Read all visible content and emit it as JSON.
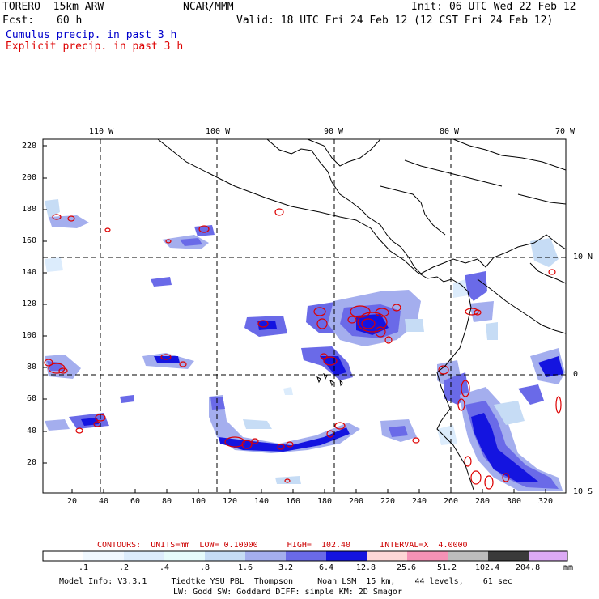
{
  "header": {
    "model": "TORERO  15km ARW",
    "center": "NCAR/MMM",
    "init": "Init: 06 UTC Wed 22 Feb 12",
    "fcst_label": "Fcst:",
    "fcst_value": "60 h",
    "valid": "Valid: 18 UTC Fri 24 Feb 12 (12 CST Fri 24 Feb 12)",
    "legend1": "Cumulus precip. in past 3 h",
    "legend2": "Explicit precip. in past 3 h"
  },
  "colors": {
    "cumulus": "#0000cc",
    "explicit": "#dd0000",
    "contour_info": "#cc0000",
    "coast": "#000000"
  },
  "map": {
    "lon_labels": [
      "110 W",
      "100 W",
      "90 W",
      "80 W",
      "70 W"
    ],
    "lat_labels": [
      "10 N",
      "0",
      "10 S"
    ],
    "y_ticks": [
      "220",
      "200",
      "180",
      "160",
      "140",
      "120",
      "100",
      "80",
      "60",
      "40",
      "20"
    ],
    "x_ticks": [
      "20",
      "40",
      "60",
      "80",
      "100",
      "120",
      "140",
      "160",
      "180",
      "200",
      "220",
      "240",
      "260",
      "280",
      "300",
      "320"
    ]
  },
  "contour_info": {
    "text": "CONTOURS:  UNITS=mm  LOW= 0.10000      HIGH=  102.40      INTERVAL=X  4.0000"
  },
  "colorbar": {
    "labels": [
      ".1",
      ".2",
      ".4",
      ".8",
      "1.6",
      "3.2",
      "6.4",
      "12.8",
      "25.6",
      "51.2",
      "102.4",
      "204.8"
    ],
    "unit": "mm",
    "colors": [
      "#ffffff",
      "#f0f8ff",
      "#dcecfc",
      "#e6fbfb",
      "#c6dcf5",
      "#a4aeee",
      "#6a6ae8",
      "#1414e0",
      "#fdd6d6",
      "#f592b6",
      "#bcbcbc",
      "#3a3a3a",
      "#dcaaf5"
    ]
  },
  "footer": {
    "line1": "Model Info: V3.3.1     Tiedtke YSU PBL  Thompson     Noah LSM  15 km,    44 levels,    61 sec",
    "line2": "LW: Godd SW: Goddard DIFF: simple KM: 2D Smagor"
  }
}
